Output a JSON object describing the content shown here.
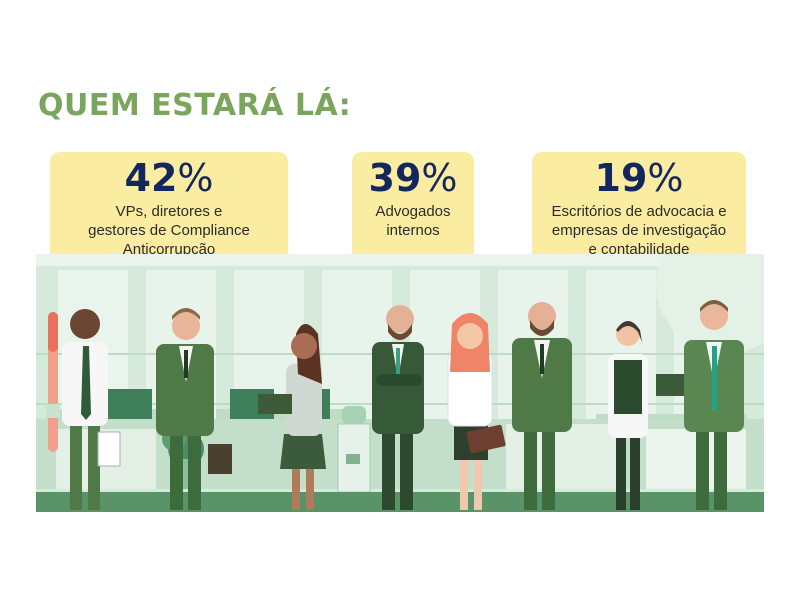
{
  "heading": "QUEM ESTARÁ LÁ:",
  "stats": [
    {
      "number": "42",
      "unit": "%",
      "description": "VPs, diretores e\ngestores de Compliance\nAnticorrupção"
    },
    {
      "number": "39",
      "unit": "%",
      "description": "Advogados\ninternos"
    },
    {
      "number": "19",
      "unit": "%",
      "description": "Escritórios de advocacia e\nempresas de investigação\ne contabilidade"
    }
  ],
  "colors": {
    "heading": "#7aa55c",
    "card": "#faeca0",
    "numbers": "#14265e",
    "suit": "#4f7a48",
    "background": "#d8ebdc"
  }
}
